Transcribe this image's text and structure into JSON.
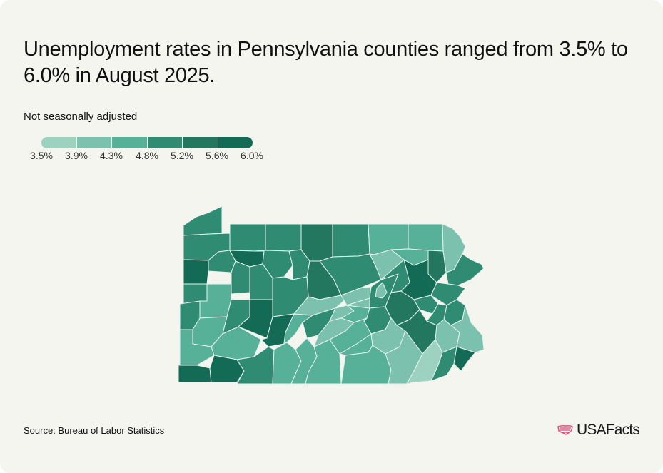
{
  "title": "Unemployment rates in Pennsylvania counties ranged from 3.5% to 6.0% in August 2025.",
  "subtitle": "Not seasonally adjusted",
  "legend": {
    "labels": [
      "3.5%",
      "3.9%",
      "4.3%",
      "4.8%",
      "5.2%",
      "5.6%",
      "6.0%"
    ],
    "colors": [
      "#9dd2c1",
      "#7cc1ad",
      "#57b098",
      "#2f8c73",
      "#24775f",
      "#136b55",
      "#0b4d3c"
    ]
  },
  "source": "Source: Bureau of Labor Statistics",
  "brand": "USAFacts",
  "colors": {
    "background": "#f5f5f0",
    "text": "#111111",
    "county_stroke": "#e8f2ee",
    "brand_accent": "#e2467a"
  },
  "map_data": {
    "region": "Pennsylvania",
    "unit": "unemployment rate class (0 = lowest bin, 5 = highest bin)",
    "counties": [
      {
        "id": "erie",
        "cls": 3
      },
      {
        "id": "warren",
        "cls": 3
      },
      {
        "id": "mckean",
        "cls": 3
      },
      {
        "id": "potter",
        "cls": 4
      },
      {
        "id": "tioga",
        "cls": 3
      },
      {
        "id": "bradford",
        "cls": 2
      },
      {
        "id": "susquehanna",
        "cls": 2
      },
      {
        "id": "wayne",
        "cls": 1
      },
      {
        "id": "crawford",
        "cls": 3
      },
      {
        "id": "venango",
        "cls": 3
      },
      {
        "id": "forest",
        "cls": 5
      },
      {
        "id": "elk",
        "cls": 3
      },
      {
        "id": "cameron",
        "cls": 3
      },
      {
        "id": "clinton",
        "cls": 4
      },
      {
        "id": "lycoming",
        "cls": 3
      },
      {
        "id": "sullivan",
        "cls": 1
      },
      {
        "id": "wyoming",
        "cls": 2
      },
      {
        "id": "lackawanna",
        "cls": 4
      },
      {
        "id": "pike",
        "cls": 3
      },
      {
        "id": "mercer",
        "cls": 5
      },
      {
        "id": "lawrence",
        "cls": 3
      },
      {
        "id": "butler",
        "cls": 2
      },
      {
        "id": "clarion",
        "cls": 3
      },
      {
        "id": "jefferson",
        "cls": 3
      },
      {
        "id": "clearfield",
        "cls": 3
      },
      {
        "id": "centre",
        "cls": 1
      },
      {
        "id": "union",
        "cls": 1
      },
      {
        "id": "northumberland",
        "cls": 3
      },
      {
        "id": "columbia",
        "cls": 3
      },
      {
        "id": "montour",
        "cls": 1
      },
      {
        "id": "luzerne",
        "cls": 5
      },
      {
        "id": "monroe",
        "cls": 3
      },
      {
        "id": "beaver",
        "cls": 3
      },
      {
        "id": "allegheny",
        "cls": 2
      },
      {
        "id": "armstrong",
        "cls": 3
      },
      {
        "id": "indiana",
        "cls": 5
      },
      {
        "id": "cambria",
        "cls": 5
      },
      {
        "id": "blair",
        "cls": 2
      },
      {
        "id": "huntingdon",
        "cls": 3
      },
      {
        "id": "mifflin",
        "cls": 1
      },
      {
        "id": "juniata",
        "cls": 2
      },
      {
        "id": "snyder",
        "cls": 1
      },
      {
        "id": "dauphin",
        "cls": 3
      },
      {
        "id": "schuylkill",
        "cls": 4
      },
      {
        "id": "carbon",
        "cls": 3
      },
      {
        "id": "northampton",
        "cls": 3
      },
      {
        "id": "lehigh",
        "cls": 3
      },
      {
        "id": "washington",
        "cls": 2
      },
      {
        "id": "westmoreland",
        "cls": 2
      },
      {
        "id": "greene",
        "cls": 5
      },
      {
        "id": "fayette",
        "cls": 5
      },
      {
        "id": "somerset",
        "cls": 3
      },
      {
        "id": "bedford",
        "cls": 2
      },
      {
        "id": "fulton",
        "cls": 2
      },
      {
        "id": "franklin",
        "cls": 2
      },
      {
        "id": "cumberland",
        "cls": 1
      },
      {
        "id": "perry",
        "cls": 2
      },
      {
        "id": "adams",
        "cls": 2
      },
      {
        "id": "york",
        "cls": 2
      },
      {
        "id": "lebanon",
        "cls": 1
      },
      {
        "id": "berks",
        "cls": 4
      },
      {
        "id": "lancaster",
        "cls": 1
      },
      {
        "id": "chester",
        "cls": 0
      },
      {
        "id": "montgomery",
        "cls": 1
      },
      {
        "id": "bucks",
        "cls": 1
      },
      {
        "id": "delaware",
        "cls": 3
      },
      {
        "id": "philadelphia",
        "cls": 5
      }
    ]
  }
}
